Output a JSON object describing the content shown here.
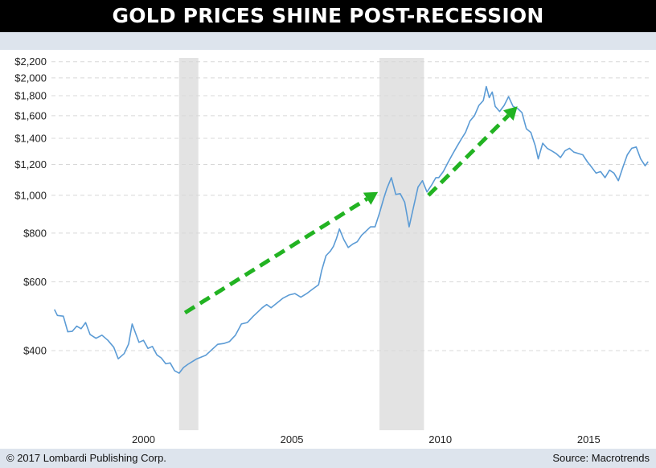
{
  "title": "GOLD PRICES SHINE POST-RECESSION",
  "footer": {
    "copyright": "© 2017 Lombardi Publishing Corp.",
    "source": "Source: Macrotrends"
  },
  "colors": {
    "title_background": "#000000",
    "band_background": "#dde4ed",
    "line": "#5b9bd5",
    "recession_shade": "#e3e3e3",
    "arrow": "#22b322",
    "grid": "#d8d8d8"
  },
  "chart_data": {
    "type": "line",
    "title": "GOLD PRICES SHINE POST-RECESSION",
    "xlabel": "",
    "ylabel": "",
    "y_scale": "log",
    "ylim": [
      250,
      2250
    ],
    "xlim": [
      1996.9,
      2017.05
    ],
    "grid": true,
    "y_ticks": [
      400,
      600,
      800,
      1000,
      1200,
      1400,
      1600,
      1800,
      2000,
      2200
    ],
    "y_tick_labels": [
      "$400",
      "$600",
      "$800",
      "$1,000",
      "$1,200",
      "$1,400",
      "$1,600",
      "$1,800",
      "$2,000",
      "$2,200"
    ],
    "x_ticks": [
      2000,
      2005,
      2010,
      2015
    ],
    "x_tick_labels": [
      "2000",
      "2005",
      "2010",
      "2015"
    ],
    "recessions": [
      {
        "start": 2001.2,
        "end": 2001.85
      },
      {
        "start": 2007.95,
        "end": 2009.45
      }
    ],
    "annotations": [
      {
        "type": "dashed-arrow",
        "from": {
          "x": 2001.4,
          "y": 500
        },
        "to": {
          "x": 2007.9,
          "y": 1020
        }
      },
      {
        "type": "dashed-arrow",
        "from": {
          "x": 2009.6,
          "y": 1000
        },
        "to": {
          "x": 2012.6,
          "y": 1690
        }
      }
    ],
    "series": [
      {
        "x": [
          1997.0,
          1997.1,
          1997.3,
          1997.45,
          1997.6,
          1997.75,
          1997.9,
          1998.05,
          1998.2,
          1998.4,
          1998.6,
          1998.8,
          1999.0,
          1999.15,
          1999.35,
          1999.5,
          1999.62,
          1999.75,
          1999.85,
          2000.0,
          2000.15,
          2000.3,
          2000.45,
          2000.6,
          2000.75,
          2000.9,
          2001.05,
          2001.2,
          2001.35,
          2001.5,
          2001.65,
          2001.8,
          2001.95,
          2002.1,
          2002.3,
          2002.5,
          2002.7,
          2002.9,
          2003.0,
          2003.1,
          2003.3,
          2003.5,
          2003.7,
          2003.85,
          2004.0,
          2004.15,
          2004.3,
          2004.5,
          2004.7,
          2004.9,
          2005.1,
          2005.3,
          2005.5,
          2005.7,
          2005.9,
          2006.0,
          2006.15,
          2006.3,
          2006.4,
          2006.5,
          2006.6,
          2006.75,
          2006.9,
          2007.05,
          2007.2,
          2007.35,
          2007.5,
          2007.65,
          2007.8,
          2007.95,
          2008.1,
          2008.2,
          2008.35,
          2008.5,
          2008.65,
          2008.8,
          2008.95,
          2009.1,
          2009.25,
          2009.4,
          2009.55,
          2009.7,
          2009.85,
          2009.95,
          2010.1,
          2010.25,
          2010.4,
          2010.55,
          2010.7,
          2010.85,
          2011.0,
          2011.15,
          2011.3,
          2011.45,
          2011.55,
          2011.65,
          2011.75,
          2011.85,
          2012.0,
          2012.15,
          2012.3,
          2012.45,
          2012.6,
          2012.75,
          2012.9,
          2013.05,
          2013.2,
          2013.3,
          2013.45,
          2013.6,
          2013.75,
          2013.9,
          2014.05,
          2014.2,
          2014.35,
          2014.5,
          2014.65,
          2014.8,
          2014.95,
          2015.1,
          2015.25,
          2015.4,
          2015.55,
          2015.7,
          2015.85,
          2016.0,
          2016.15,
          2016.3,
          2016.45,
          2016.6,
          2016.75,
          2016.9,
          2017.0
        ],
        "values": [
          510,
          492,
          490,
          447,
          448,
          462,
          455,
          472,
          440,
          430,
          438,
          425,
          408,
          381,
          393,
          416,
          468,
          440,
          420,
          425,
          405,
          410,
          390,
          383,
          370,
          372,
          355,
          350,
          362,
          369,
          375,
          381,
          385,
          389,
          402,
          415,
          417,
          422,
          430,
          438,
          468,
          472,
          490,
          502,
          515,
          525,
          515,
          530,
          545,
          555,
          560,
          548,
          560,
          575,
          590,
          640,
          700,
          720,
          740,
          775,
          820,
          770,
          735,
          750,
          760,
          790,
          810,
          830,
          830,
          900,
          985,
          1040,
          1110,
          1005,
          1010,
          960,
          830,
          935,
          1050,
          1090,
          1020,
          1060,
          1110,
          1110,
          1150,
          1210,
          1270,
          1330,
          1390,
          1450,
          1550,
          1600,
          1700,
          1750,
          1900,
          1780,
          1840,
          1690,
          1640,
          1700,
          1790,
          1690,
          1670,
          1630,
          1480,
          1450,
          1340,
          1240,
          1360,
          1320,
          1300,
          1280,
          1250,
          1300,
          1320,
          1290,
          1280,
          1270,
          1220,
          1180,
          1140,
          1150,
          1110,
          1160,
          1140,
          1090,
          1180,
          1270,
          1320,
          1330,
          1240,
          1190,
          1220
        ]
      }
    ]
  }
}
